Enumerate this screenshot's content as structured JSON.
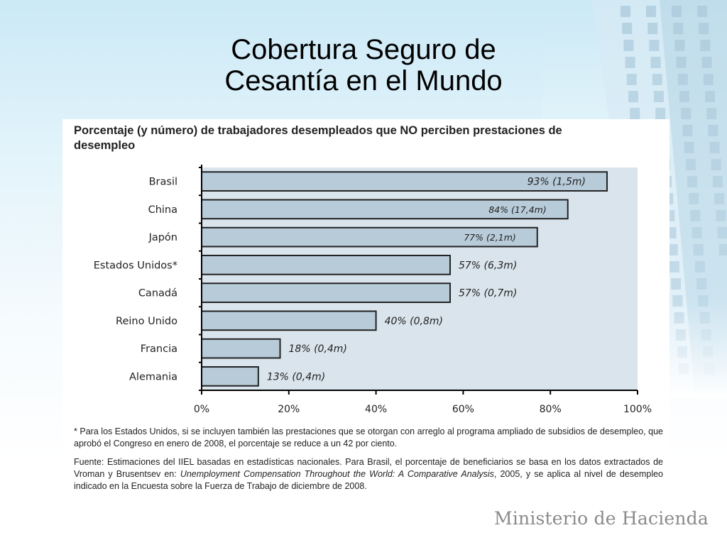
{
  "slide": {
    "title_line1": "Cobertura Seguro de",
    "title_line2": "Cesantía en el Mundo",
    "brand": "Ministerio de Hacienda"
  },
  "chart_heading": "Porcentaje (y número) de trabajadores desempleados que NO perciben prestaciones de  desempleo",
  "chart_data": {
    "type": "bar",
    "orientation": "horizontal",
    "title": "Porcentaje (y número) de trabajadores desempleados que NO perciben prestaciones de  desempleo",
    "categories": [
      "Brasil",
      "China",
      "Japón",
      "Estados Unidos*",
      "Canadá",
      "Reino Unido",
      "Francia",
      "Alemania"
    ],
    "values": [
      93,
      84,
      77,
      57,
      57,
      40,
      18,
      13
    ],
    "data_labels": [
      "93% (1,5m)",
      "84% (17,4m)",
      "77% (2,1m)",
      "57% (6,3m)",
      "57% (0,7m)",
      "40% (0,8m)",
      "18% (0,4m)",
      "13% (0,4m)"
    ],
    "xlim": [
      0,
      100
    ],
    "xticks": [
      0,
      20,
      40,
      60,
      80,
      100
    ],
    "xtick_labels": [
      "0%",
      "20%",
      "40%",
      "60%",
      "80%",
      "100%"
    ],
    "xlabel": "",
    "ylabel": "",
    "grid": false,
    "legend": "none",
    "colors": {
      "bar_fill": "#b8cbd9",
      "bar_stroke": "#222222",
      "plot_bg": "#d9e4ec"
    }
  },
  "notes": {
    "note1": "* Para los Estados Unidos, si se incluyen también las prestaciones que se otorgan con arreglo al programa ampliado de subsidios de desempleo, que aprobó el Congreso en enero de 2008, el porcentaje se reduce a un 42 por ciento.",
    "note2_a": "Fuente: Estimaciones del IIEL basadas en estadísticas nacionales. Para Brasil, el porcentaje de beneficiarios se basa en los datos extractados de Vroman y Brusentsev en: ",
    "note2_italic": "Unemployment Compensation Throughout the World: A Comparative Analysis",
    "note2_b": ", 2005, y se aplica al nivel de desempleo indicado en la Encuesta sobre la Fuerza de Trabajo de diciembre de 2008."
  }
}
